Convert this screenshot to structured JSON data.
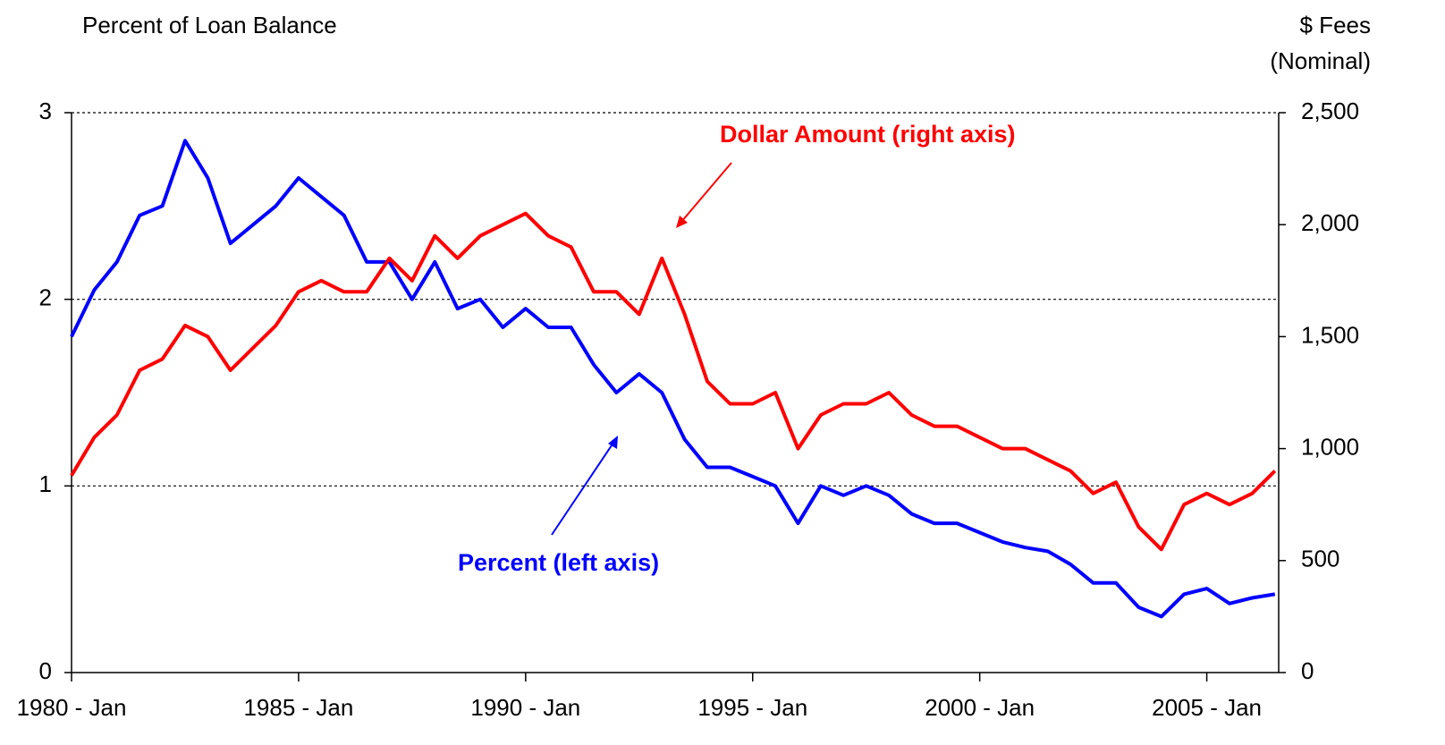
{
  "chart_data": {
    "type": "line",
    "ylabel": "Percent of Loan Balance",
    "y2label": [
      "$ Fees",
      "(Nominal)"
    ],
    "annotations": [
      {
        "text": "Dollar Amount (right axis)",
        "color": "#ff0000"
      },
      {
        "text": "Percent (left axis)",
        "color": "#0000ff"
      }
    ],
    "x": [
      "1980-01",
      "1980-07",
      "1981-01",
      "1981-07",
      "1982-01",
      "1982-07",
      "1983-01",
      "1983-07",
      "1984-01",
      "1984-07",
      "1985-01",
      "1985-07",
      "1986-01",
      "1986-07",
      "1987-01",
      "1987-07",
      "1988-01",
      "1988-07",
      "1989-01",
      "1989-07",
      "1990-01",
      "1990-07",
      "1991-01",
      "1991-07",
      "1992-01",
      "1992-07",
      "1993-01",
      "1993-07",
      "1994-01",
      "1994-07",
      "1995-01",
      "1995-07",
      "1996-01",
      "1996-07",
      "1997-01",
      "1997-07",
      "1998-01",
      "1998-07",
      "1999-01",
      "1999-07",
      "2000-01",
      "2000-07",
      "2001-01",
      "2001-07",
      "2002-01",
      "2002-07",
      "2003-01",
      "2003-07",
      "2004-01",
      "2004-07",
      "2005-01",
      "2005-07",
      "2006-01",
      "2006-07"
    ],
    "series": [
      {
        "name": "Percent (left axis)",
        "color": "#0000ff",
        "axis": "y",
        "values": [
          1.8,
          2.05,
          2.2,
          2.45,
          2.5,
          2.85,
          2.65,
          2.3,
          2.4,
          2.5,
          2.65,
          2.55,
          2.45,
          2.2,
          2.2,
          2.0,
          2.2,
          1.95,
          2.0,
          1.85,
          1.95,
          1.85,
          1.85,
          1.65,
          1.5,
          1.6,
          1.5,
          1.25,
          1.1,
          1.1,
          1.05,
          1.0,
          0.8,
          1.0,
          0.95,
          1.0,
          0.95,
          0.85,
          0.8,
          0.8,
          0.75,
          0.7,
          0.67,
          0.65,
          0.58,
          0.48,
          0.48,
          0.35,
          0.3,
          0.42,
          0.45,
          0.37,
          0.4,
          0.42
        ]
      },
      {
        "name": "Dollar Amount (right axis)",
        "color": "#ff0000",
        "axis": "y2",
        "values": [
          880,
          1050,
          1150,
          1350,
          1400,
          1550,
          1500,
          1350,
          1450,
          1550,
          1700,
          1750,
          1700,
          1700,
          1850,
          1750,
          1950,
          1850,
          1950,
          2000,
          2050,
          1950,
          1900,
          1700,
          1700,
          1600,
          1850,
          1600,
          1300,
          1200,
          1200,
          1250,
          1000,
          1150,
          1200,
          1200,
          1250,
          1150,
          1100,
          1100,
          1050,
          1000,
          1000,
          950,
          900,
          800,
          850,
          650,
          550,
          750,
          800,
          750,
          800,
          900
        ]
      }
    ],
    "xlim": [
      "1980-01",
      "2006-08"
    ],
    "xticks": [
      {
        "value": "1980-01",
        "label": "1980 - Jan"
      },
      {
        "value": "1985-01",
        "label": "1985 - Jan"
      },
      {
        "value": "1990-01",
        "label": "1990 - Jan"
      },
      {
        "value": "1995-01",
        "label": "1995 - Jan"
      },
      {
        "value": "2000-01",
        "label": "2000 - Jan"
      },
      {
        "value": "2005-01",
        "label": "2005 - Jan"
      }
    ],
    "ylim": [
      0,
      3
    ],
    "yticks": [
      0,
      1,
      2,
      3
    ],
    "y2lim": [
      0,
      2500
    ],
    "y2ticks": [
      0,
      {
        "value": 500,
        "label": "500"
      },
      {
        "value": 1000,
        "label": "1,000"
      },
      {
        "value": 1500,
        "label": "1,500"
      },
      {
        "value": 2000,
        "label": "2,000"
      },
      {
        "value": 2500,
        "label": "2,500"
      }
    ],
    "grid": true
  }
}
